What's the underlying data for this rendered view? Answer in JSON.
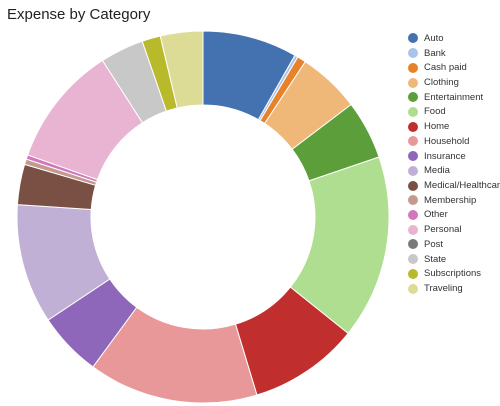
{
  "chart_data": {
    "type": "pie",
    "variant": "donut",
    "title": "Expense by Category",
    "legend_position": "right",
    "start_angle_deg": 0,
    "direction": "clockwise",
    "slices": [
      {
        "label": "Auto",
        "value": 8.7,
        "color": "#4472b0"
      },
      {
        "label": "Bank",
        "value": 0.3,
        "color": "#a8c4e8"
      },
      {
        "label": "Cash paid",
        "value": 0.8,
        "color": "#e8822a"
      },
      {
        "label": "Clothing",
        "value": 5.7,
        "color": "#f0b878"
      },
      {
        "label": "Entertainment",
        "value": 5.4,
        "color": "#5c9e3a"
      },
      {
        "label": "Food",
        "value": 16.9,
        "color": "#b0de90"
      },
      {
        "label": "Home",
        "value": 10.1,
        "color": "#c02e2e"
      },
      {
        "label": "Household",
        "value": 15.6,
        "color": "#e89898"
      },
      {
        "label": "Insurance",
        "value": 5.9,
        "color": "#8e66ba"
      },
      {
        "label": "Media",
        "value": 11.0,
        "color": "#c0b0d6"
      },
      {
        "label": "Medical/Healthcare",
        "value": 3.7,
        "color": "#7a5045"
      },
      {
        "label": "Membership",
        "value": 0.5,
        "color": "#c29a90"
      },
      {
        "label": "Other",
        "value": 0.4,
        "color": "#d277be"
      },
      {
        "label": "Personal",
        "value": 11.1,
        "color": "#e8b4d2"
      },
      {
        "label": "Post",
        "value": 0.0,
        "color": "#7a7a7a"
      },
      {
        "label": "State",
        "value": 4.0,
        "color": "#c8c8c8"
      },
      {
        "label": "Subscriptions",
        "value": 1.7,
        "color": "#b8ba2c"
      },
      {
        "label": "Traveling",
        "value": 3.9,
        "color": "#dcdc96"
      }
    ]
  }
}
